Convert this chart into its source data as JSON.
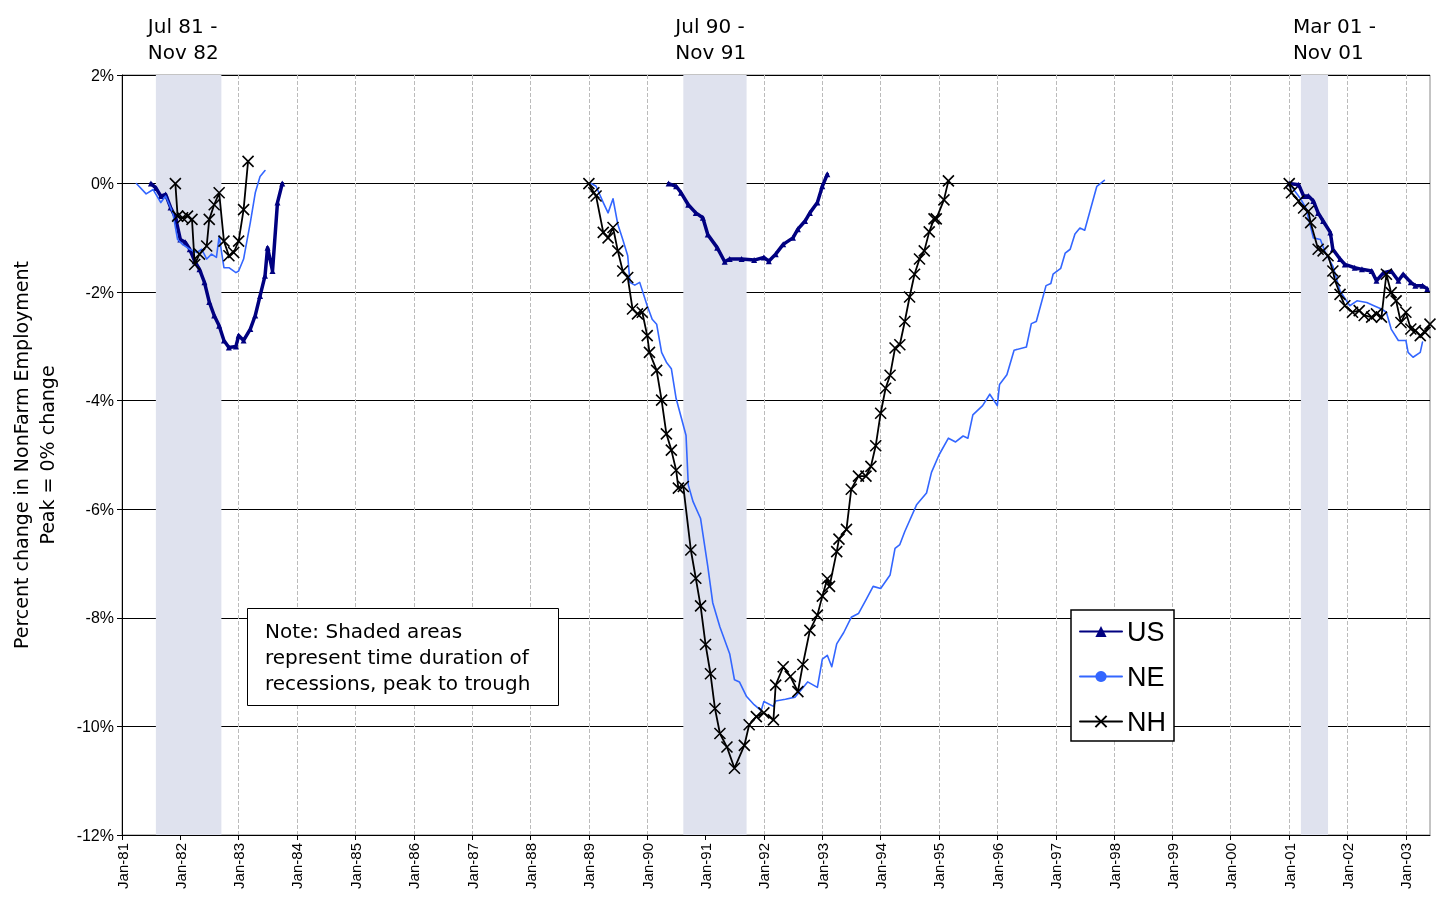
{
  "chart_data": {
    "type": "line",
    "ylabel": "Percent change in NonFarm Employment\nPeak = 0% change",
    "xlim": [
      "1981-01-01",
      "2003-06-01"
    ],
    "xticks": [
      {
        "value": "1981-01",
        "label": "Jan-81"
      },
      {
        "value": "1982-01",
        "label": "Jan-82"
      },
      {
        "value": "1983-01",
        "label": "Jan-83"
      },
      {
        "value": "1984-01",
        "label": "Jan-84"
      },
      {
        "value": "1985-01",
        "label": "Jan-85"
      },
      {
        "value": "1986-01",
        "label": "Jan-86"
      },
      {
        "value": "1987-01",
        "label": "Jan-87"
      },
      {
        "value": "1988-01",
        "label": "Jan-88"
      },
      {
        "value": "1989-01",
        "label": "Jan-89"
      },
      {
        "value": "1990-01",
        "label": "Jan-90"
      },
      {
        "value": "1991-01",
        "label": "Jan-91"
      },
      {
        "value": "1992-01",
        "label": "Jan-92"
      },
      {
        "value": "1993-01",
        "label": "Jan-93"
      },
      {
        "value": "1994-01",
        "label": "Jan-94"
      },
      {
        "value": "1995-01",
        "label": "Jan-95"
      },
      {
        "value": "1996-01",
        "label": "Jan-96"
      },
      {
        "value": "1997-01",
        "label": "Jan-97"
      },
      {
        "value": "1998-01",
        "label": "Jan-98"
      },
      {
        "value": "1999-01",
        "label": "Jan-99"
      },
      {
        "value": "2000-01",
        "label": "Jan-00"
      },
      {
        "value": "2001-01",
        "label": "Jan-01"
      },
      {
        "value": "2002-01",
        "label": "Jan-02"
      },
      {
        "value": "2003-01",
        "label": "Jan-03"
      }
    ],
    "ylim": [
      -12,
      2
    ],
    "yticks": [
      {
        "value": -12,
        "label": "-12%"
      },
      {
        "value": -10,
        "label": "-10%"
      },
      {
        "value": -8,
        "label": "-8%"
      },
      {
        "value": -6,
        "label": "-6%"
      },
      {
        "value": -4,
        "label": "-4%"
      },
      {
        "value": -2,
        "label": "-2%"
      },
      {
        "value": 0,
        "label": "0%"
      },
      {
        "value": 2,
        "label": "2%"
      }
    ],
    "grid": true,
    "legend": "right",
    "bands": [
      {
        "axis": "x",
        "from": "1981-08-01",
        "to": "1982-09-15",
        "label": "Jul 81 -\nNov 82",
        "color": "#dfe2ee"
      },
      {
        "axis": "x",
        "from": "1990-08-15",
        "to": "1991-09-15",
        "label": "Jul 90 -\nNov 91",
        "color": "#dfe2ee"
      },
      {
        "axis": "x",
        "from": "2001-03-15",
        "to": "2001-09-01",
        "label": "Mar 01 -\nNov 01",
        "color": "#dfe2ee"
      }
    ],
    "annotations": [
      "Note: Shaded areas represent time duration of recessions, peak to trough"
    ],
    "series": [
      {
        "name": "US",
        "color": "#000080",
        "marker": "triangle",
        "line_style": "solid",
        "x": [
          "1981-07-01",
          "1981-08-01",
          "1981-09-01",
          "1981-10-01",
          "1981-11-01",
          "1981-12-01",
          "1982-01-01",
          "1982-02-01",
          "1982-03-01",
          "1982-04-01",
          "1982-05-01",
          "1982-06-01",
          "1982-07-01",
          "1982-08-01",
          "1982-09-01",
          "1982-10-01",
          "1982-11-01",
          "1982-12-15",
          "1983-01-01",
          "1983-02-01",
          "1983-03-15",
          "1983-04-15",
          "1983-05-15",
          "1983-06-15",
          "1983-07-01",
          "1983-08-01",
          "1983-09-01",
          "1983-10-01",
          "1986-01-01",
          "1990-05-15",
          "1990-07-01",
          "1990-08-01",
          "1990-09-15",
          "1990-11-01",
          "1990-12-15",
          "1991-01-15",
          "1991-03-15",
          "1991-05-01",
          "1991-06-01",
          "1991-08-15",
          "1991-11-01",
          "1992-01-01",
          "1992-02-01",
          "1992-03-15",
          "1992-05-01",
          "1992-07-01",
          "1992-08-01",
          "1992-09-15",
          "1992-10-15",
          "1992-12-01",
          "1993-01-01",
          "1993-02-01",
          "1999-01-01",
          "2001-01-01",
          "2001-03-01",
          "2001-04-01",
          "2001-05-01",
          "2001-06-01",
          "2001-07-01",
          "2001-08-01",
          "2001-09-15",
          "2001-10-01",
          "2001-11-15",
          "2001-12-15",
          "2002-02-15",
          "2002-04-01",
          "2002-06-01",
          "2002-07-01",
          "2002-08-15",
          "2002-10-01",
          "2002-11-15",
          "2002-12-15",
          "2003-02-01",
          "2003-03-01",
          "2003-04-15",
          "2003-05-15"
        ],
        "values": [
          0,
          -0.08,
          -0.23,
          -0.2,
          -0.44,
          -0.62,
          -1.03,
          -1.08,
          -1.21,
          -1.43,
          -1.58,
          -1.82,
          -2.18,
          -2.43,
          -2.62,
          -2.89,
          -3.02,
          -3.0,
          -2.8,
          -2.89,
          -2.68,
          -2.43,
          -2.07,
          -1.7,
          -1.18,
          -1.61,
          -0.35,
          0,
          null,
          0,
          -0.05,
          -0.17,
          -0.39,
          -0.54,
          -0.63,
          -0.94,
          -1.18,
          -1.44,
          -1.39,
          -1.39,
          -1.41,
          -1.36,
          -1.43,
          -1.3,
          -1.12,
          -1.0,
          -0.84,
          -0.69,
          -0.54,
          -0.35,
          -0.05,
          0.17,
          null,
          0,
          -0.02,
          -0.23,
          -0.23,
          -0.32,
          -0.54,
          -0.69,
          -0.9,
          -1.21,
          -1.39,
          -1.49,
          -1.55,
          -1.58,
          -1.61,
          -1.79,
          -1.64,
          -1.61,
          -1.79,
          -1.67,
          -1.82,
          -1.88,
          -1.88,
          -1.94
        ]
      },
      {
        "name": "NE",
        "color": "#3366ff",
        "marker": "none",
        "line_style": "solid",
        "x": [
          "1981-04-01",
          "1981-06-01",
          "1981-07-15",
          "1981-09-01",
          "1981-10-01",
          "1981-11-15",
          "1981-12-15",
          "1982-01-15",
          "1982-03-01",
          "1982-04-15",
          "1982-05-15",
          "1982-06-15",
          "1982-07-15",
          "1982-08-15",
          "1982-09-01",
          "1982-10-01",
          "1982-11-01",
          "1982-12-15",
          "1983-01-01",
          "1983-02-01",
          "1983-03-15",
          "1983-04-15",
          "1983-05-15",
          "1983-06-15",
          "1986-01-01",
          "1989-01-15",
          "1989-02-15",
          "1989-04-01",
          "1989-05-01",
          "1989-06-01",
          "1989-07-01",
          "1989-08-01",
          "1989-09-01",
          "1989-09-15",
          "1989-10-15",
          "1989-11-15",
          "1990-01-01",
          "1990-02-01",
          "1990-03-01",
          "1990-04-01",
          "1990-05-01",
          "1990-06-01",
          "1990-07-01",
          "1990-08-01",
          "1990-09-01",
          "1990-09-15",
          "1990-10-15",
          "1990-12-01",
          "1991-01-15",
          "1991-02-15",
          "1991-04-01",
          "1991-06-01",
          "1991-07-01",
          "1991-08-01",
          "1991-09-15",
          "1991-11-01",
          "1991-12-15",
          "1992-01-01",
          "1992-03-01",
          "1992-03-15",
          "1992-05-15",
          "1992-07-15",
          "1992-10-01",
          "1992-12-01",
          "1993-01-01",
          "1993-02-01",
          "1993-03-01",
          "1993-04-01",
          "1993-05-15",
          "1993-07-01",
          "1993-08-15",
          "1993-10-01",
          "1993-11-15",
          "1994-01-01",
          "1994-03-01",
          "1994-04-01",
          "1994-05-01",
          "1994-06-01",
          "1994-08-15",
          "1994-10-15",
          "1994-11-15",
          "1995-01-01",
          "1995-03-01",
          "1995-04-15",
          "1995-06-01",
          "1995-07-01",
          "1995-08-01",
          "1995-10-01",
          "1995-11-15",
          "1996-01-01",
          "1996-01-15",
          "1996-03-01",
          "1996-04-15",
          "1996-07-01",
          "1996-08-01",
          "1996-09-01",
          "1996-11-01",
          "1996-12-01",
          "1996-12-15",
          "1997-02-01",
          "1997-03-01",
          "1997-04-01",
          "1997-05-01",
          "1997-06-01",
          "1997-07-01",
          "1997-09-15",
          "1997-11-01",
          "1999-01-01",
          "2001-01-01",
          "2001-03-15",
          "2001-04-15",
          "2001-06-01",
          "2001-07-15",
          "2001-08-15",
          "2001-10-01",
          "2001-11-15",
          "2002-01-15",
          "2002-03-01",
          "2002-05-01",
          "2002-06-15",
          "2002-08-01",
          "2002-09-01",
          "2002-10-01",
          "2002-11-15",
          "2003-01-01",
          "2003-01-15",
          "2003-02-15",
          "2003-04-01",
          "2003-04-15"
        ],
        "values": [
          0,
          -0.19,
          -0.11,
          -0.35,
          -0.23,
          -0.54,
          -1.03,
          -1.12,
          -1.21,
          -1.27,
          -1.21,
          -1.39,
          -1.3,
          -1.36,
          -0.97,
          -1.55,
          -1.55,
          -1.64,
          -1.61,
          -1.39,
          -0.72,
          -0.17,
          0.13,
          0.24,
          null,
          0,
          -0.05,
          -0.35,
          -0.54,
          -0.28,
          -0.75,
          -1.03,
          -1.33,
          -1.82,
          -1.87,
          -1.82,
          -2.25,
          -2.5,
          -2.59,
          -3.11,
          -3.29,
          -3.41,
          -3.96,
          -4.3,
          -4.64,
          -5.55,
          -5.86,
          -6.17,
          -7.05,
          -7.72,
          -8.17,
          -8.66,
          -9.14,
          -9.18,
          -9.45,
          -9.6,
          -9.71,
          -9.54,
          -9.63,
          -9.53,
          -9.5,
          -9.46,
          -9.18,
          -9.28,
          -8.76,
          -8.69,
          -8.9,
          -8.48,
          -8.27,
          -7.99,
          -7.92,
          -7.67,
          -7.42,
          -7.46,
          -7.21,
          -6.72,
          -6.65,
          -6.41,
          -5.91,
          -5.7,
          -5.32,
          -5.0,
          -4.69,
          -4.76,
          -4.65,
          -4.69,
          -4.26,
          -4.09,
          -3.88,
          -4.09,
          -3.7,
          -3.52,
          -3.07,
          -3.01,
          -2.58,
          -2.54,
          -1.88,
          -1.84,
          -1.67,
          -1.56,
          -1.28,
          -1.21,
          -0.93,
          -0.82,
          -0.86,
          -0.05,
          0.06,
          null,
          0,
          -0.29,
          -0.45,
          -1.0,
          -1.03,
          -1.27,
          -1.52,
          -1.98,
          -2.25,
          -2.16,
          -2.19,
          -2.25,
          -2.31,
          -2.37,
          -2.68,
          -2.89,
          -2.89,
          -3.11,
          -3.2,
          -3.11,
          -2.92
        ]
      },
      {
        "name": "NH",
        "color": "#000000",
        "marker": "cross",
        "line_style": "solid",
        "x": [
          "1981-12-01",
          "1981-12-15",
          "1982-01-15",
          "1982-02-15",
          "1982-03-15",
          "1982-04-01",
          "1982-05-01",
          "1982-06-15",
          "1982-07-01",
          "1982-08-01",
          "1982-09-01",
          "1982-10-01",
          "1982-11-01",
          "1982-12-01",
          "1983-01-01",
          "1983-02-01",
          "1983-03-01",
          "1986-01-01",
          "1989-01-01",
          "1989-02-01",
          "1989-02-15",
          "1989-04-01",
          "1989-05-01",
          "1989-06-01",
          "1989-07-01",
          "1989-08-01",
          "1989-09-01",
          "1989-10-01",
          "1989-11-01",
          "1989-12-01",
          "1990-01-01",
          "1990-01-15",
          "1990-03-01",
          "1990-04-01",
          "1990-05-01",
          "1990-06-01",
          "1990-07-01",
          "1990-07-15",
          "1990-08-15",
          "1990-10-01",
          "1990-11-01",
          "1990-12-01",
          "1991-01-01",
          "1991-02-01",
          "1991-03-01",
          "1991-04-01",
          "1991-05-15",
          "1991-07-01",
          "1991-09-01",
          "1991-10-01",
          "1991-11-15",
          "1992-01-01",
          "1992-03-01",
          "1992-03-15",
          "1992-05-01",
          "1992-06-15",
          "1992-08-01",
          "1992-09-01",
          "1992-10-15",
          "1992-12-01",
          "1993-01-01",
          "1993-02-01",
          "1993-02-15",
          "1993-04-01",
          "1993-04-15",
          "1993-06-01",
          "1993-07-01",
          "1993-08-15",
          "1993-10-01",
          "1993-11-01",
          "1993-12-01",
          "1994-01-01",
          "1994-02-01",
          "1994-03-01",
          "1994-04-01",
          "1994-05-01",
          "1994-06-01",
          "1994-07-01",
          "1994-08-01",
          "1994-09-01",
          "1994-10-01",
          "1994-11-01",
          "1994-12-01",
          "1994-12-15",
          "1995-02-01",
          "1995-03-01",
          "1999-01-01",
          "2001-01-01",
          "2001-01-15",
          "2001-03-01",
          "2001-04-01",
          "2001-05-01",
          "2001-05-15",
          "2001-07-01",
          "2001-08-01",
          "2001-09-01",
          "2001-10-01",
          "2001-10-15",
          "2001-11-15",
          "2001-12-15",
          "2002-02-01",
          "2002-03-15",
          "2002-04-15",
          "2002-06-01",
          "2002-07-01",
          "2002-08-01",
          "2002-09-01",
          "2002-10-01",
          "2002-11-01",
          "2002-12-01",
          "2003-01-01",
          "2003-02-01",
          "2003-03-01",
          "2003-04-01",
          "2003-05-01",
          "2003-06-01"
        ],
        "values": [
          0,
          -0.6,
          -0.63,
          -0.6,
          -0.66,
          -1.49,
          -1.3,
          -1.15,
          -0.66,
          -0.39,
          -0.17,
          -1.06,
          -1.33,
          -1.27,
          -1.06,
          -0.48,
          0.41,
          null,
          0,
          -0.17,
          -0.23,
          -0.9,
          -1.0,
          -0.81,
          -1.24,
          -1.61,
          -1.73,
          -2.31,
          -2.4,
          -2.37,
          -2.8,
          -3.11,
          -3.44,
          -3.99,
          -4.61,
          -4.91,
          -5.28,
          -5.61,
          -5.58,
          -6.75,
          -7.27,
          -7.78,
          -8.49,
          -9.03,
          -9.67,
          -10.13,
          -10.38,
          -10.77,
          -10.35,
          -9.97,
          -9.82,
          -9.75,
          -9.88,
          -9.24,
          -8.9,
          -9.08,
          -9.36,
          -8.86,
          -8.23,
          -7.95,
          -7.6,
          -7.28,
          -7.42,
          -6.78,
          -6.55,
          -6.37,
          -5.63,
          -5.39,
          -5.39,
          -5.21,
          -4.83,
          -4.23,
          -3.77,
          -3.53,
          -3.03,
          -2.97,
          -2.54,
          -2.09,
          -1.67,
          -1.39,
          -1.24,
          -0.89,
          -0.65,
          -0.65,
          -0.3,
          0.05,
          null,
          0,
          -0.17,
          -0.32,
          -0.45,
          -0.51,
          -0.72,
          -1.21,
          -1.24,
          -1.33,
          -1.61,
          -1.79,
          -2.04,
          -2.25,
          -2.37,
          -2.34,
          -2.43,
          -2.46,
          -2.4,
          -2.46,
          -1.67,
          -2.01,
          -2.16,
          -2.56,
          -2.37,
          -2.68,
          -2.71,
          -2.8,
          -2.74,
          -2.59
        ]
      }
    ]
  }
}
